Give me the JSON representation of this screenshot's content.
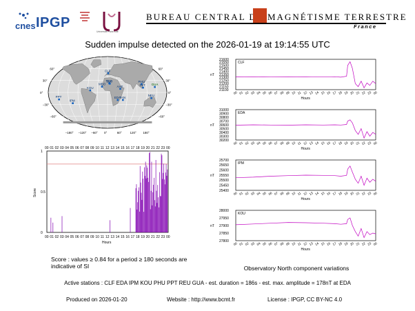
{
  "logos": {
    "cnes": "cnes",
    "ipgp": "IPGP",
    "university": "Université Paris Cité"
  },
  "banner": {
    "title": "BUREAU CENTRAL DE MAGNÉTISME TERRESTRE",
    "country": "France",
    "accent": "#c8401a"
  },
  "title": "Sudden impulse detected on the 2026-01-19 at 19:14:55 UTC",
  "map": {
    "stations": [
      {
        "code": "CLF",
        "lon": 2.3,
        "lat": 48.0
      },
      {
        "code": "IPM",
        "lon": -109.4,
        "lat": -27.2
      },
      {
        "code": "KOU",
        "lon": -52.7,
        "lat": 5.2
      },
      {
        "code": "PHU",
        "lon": 105.8,
        "lat": 21.0
      },
      {
        "code": "TAM",
        "lon": 5.5,
        "lat": 22.8
      },
      {
        "code": "GUA",
        "lon": 144.9,
        "lat": 13.6
      },
      {
        "code": "DLT",
        "lon": 108.5,
        "lat": 11.9
      },
      {
        "code": "MBO",
        "lon": -17.0,
        "lat": 14.4
      },
      {
        "code": "AAE",
        "lon": 38.8,
        "lat": 9.0
      },
      {
        "code": "PPT",
        "lon": -149.6,
        "lat": -17.6
      },
      {
        "code": "EDA",
        "lon": 31.5,
        "lat": -19.0
      },
      {
        "code": "TAN",
        "lon": 47.5,
        "lat": -18.9
      },
      {
        "code": "NEU",
        "lon": 134.4,
        "lat": -14.2
      },
      {
        "code": "SLC",
        "lon": 7.0,
        "lat": 22.0
      }
    ],
    "lon_labels": [
      "−180°",
      "−120°",
      "−60°",
      "0°",
      "60°",
      "120°",
      "180°"
    ],
    "lat_labels": [
      "60°",
      "30°",
      "0°",
      "−30°",
      "−60°"
    ]
  },
  "score_chart": {
    "hours": [
      "00",
      "01",
      "02",
      "03",
      "04",
      "05",
      "06",
      "07",
      "08",
      "09",
      "10",
      "11",
      "12",
      "13",
      "14",
      "15",
      "16",
      "17",
      "18",
      "19",
      "20",
      "21",
      "22",
      "23",
      "00"
    ],
    "xlabel": "Hours",
    "ylabel": "Score",
    "yticks": [
      "0",
      "0.5",
      "1"
    ],
    "threshold": 0.84
  },
  "chart_data": [
    {
      "type": "line",
      "name": "CLF",
      "ylabel": "nT",
      "xlabel": "Hours",
      "yticks": [
        21100,
        21150,
        21200,
        21250,
        21300,
        21350,
        21400,
        21450,
        21500,
        21550,
        21600
      ],
      "ylim": [
        21100,
        21600
      ],
      "xticks": [
        "00",
        "01",
        "02",
        "03",
        "04",
        "05",
        "06",
        "07",
        "08",
        "09",
        "10",
        "11",
        "12",
        "13",
        "14",
        "15",
        "16",
        "17",
        "18",
        "19",
        "20",
        "21",
        "22",
        "23",
        "00"
      ],
      "x": [
        0,
        3,
        6,
        9,
        12,
        15,
        17,
        18,
        19,
        19.2,
        19.6,
        20,
        20.5,
        21,
        21.5,
        22,
        22.5,
        23,
        23.5,
        24
      ],
      "y": [
        21310,
        21312,
        21308,
        21310,
        21312,
        21308,
        21312,
        21306,
        21320,
        21500,
        21560,
        21450,
        21200,
        21150,
        21240,
        21130,
        21210,
        21170,
        21240,
        21200
      ]
    },
    {
      "type": "line",
      "name": "EDA",
      "ylabel": "nT",
      "xlabel": "Hours",
      "yticks": [
        30200,
        30300,
        30400,
        30500,
        30600,
        30700,
        30800,
        30900,
        31000
      ],
      "ylim": [
        30200,
        31000
      ],
      "xticks": [
        "00",
        "01",
        "02",
        "03",
        "04",
        "05",
        "06",
        "07",
        "08",
        "09",
        "10",
        "11",
        "12",
        "13",
        "14",
        "15",
        "16",
        "17",
        "18",
        "19",
        "20",
        "21",
        "22",
        "23",
        "00"
      ],
      "x": [
        0,
        3,
        6,
        9,
        12,
        15,
        17,
        18,
        19,
        19.2,
        19.6,
        20,
        20.5,
        21,
        21.5,
        22,
        22.5,
        23,
        23.5,
        24
      ],
      "y": [
        30590,
        30600,
        30595,
        30590,
        30600,
        30595,
        30600,
        30595,
        30610,
        30700,
        30730,
        30650,
        30450,
        30350,
        30500,
        30250,
        30420,
        30300,
        30400,
        30350
      ]
    },
    {
      "type": "line",
      "name": "IPM",
      "ylabel": "nT",
      "xlabel": "Hours",
      "yticks": [
        25400,
        25450,
        25500,
        25550,
        25600,
        25650,
        25700
      ],
      "ylim": [
        25400,
        25700
      ],
      "xticks": [
        "00",
        "01",
        "02",
        "03",
        "04",
        "05",
        "06",
        "07",
        "08",
        "09",
        "10",
        "11",
        "12",
        "13",
        "14",
        "15",
        "16",
        "17",
        "18",
        "19",
        "20",
        "21",
        "22",
        "23",
        "00"
      ],
      "x": [
        0,
        3,
        6,
        9,
        12,
        15,
        17,
        18,
        19,
        19.2,
        19.6,
        20,
        20.5,
        21,
        21.5,
        22,
        22.5,
        23,
        23.5,
        24
      ],
      "y": [
        25525,
        25530,
        25540,
        25545,
        25550,
        25548,
        25545,
        25540,
        25548,
        25610,
        25640,
        25580,
        25510,
        25470,
        25540,
        25450,
        25520,
        25480,
        25510,
        25490
      ]
    },
    {
      "type": "line",
      "name": "KOU",
      "ylabel": "nT",
      "xlabel": "Hours",
      "yticks": [
        27800,
        27850,
        27900,
        27950,
        28000
      ],
      "ylim": [
        27800,
        28000
      ],
      "xticks": [
        "00",
        "01",
        "02",
        "03",
        "04",
        "05",
        "06",
        "07",
        "08",
        "09",
        "10",
        "11",
        "12",
        "13",
        "14",
        "15",
        "16",
        "17",
        "18",
        "19",
        "20",
        "21",
        "22",
        "23",
        "00"
      ],
      "x": [
        0,
        3,
        6,
        9,
        12,
        15,
        17,
        18,
        19,
        19.2,
        19.6,
        20,
        20.5,
        21,
        21.5,
        22,
        22.5,
        23,
        23.5,
        24
      ],
      "y": [
        27905,
        27910,
        27915,
        27920,
        27918,
        27915,
        27912,
        27908,
        27912,
        27940,
        27950,
        27900,
        27860,
        27830,
        27880,
        27820,
        27860,
        27840,
        27850,
        27845
      ]
    }
  ],
  "captions": {
    "score": "Score : values ≥ 0.84 for a period ≥ 180 seconds are indicative of SI",
    "north": "Observatory North component variations"
  },
  "stations_line": "Active stations : CLF EDA IPM KOU PHU PPT REU GUA - est. duration = 186s - est. max. amplitude = 178nT at EDA",
  "footer": {
    "produced": "Produced on 2026-01-20",
    "website": "Website : http://www.bcmt.fr",
    "license": "License : IPGP, CC BY-NC 4.0"
  },
  "colors": {
    "series": "#c000c0",
    "score": "#8000b0",
    "threshold": "#e08080",
    "map_land": "#aaaaaa",
    "map_ocean": "#dcdcdc"
  }
}
